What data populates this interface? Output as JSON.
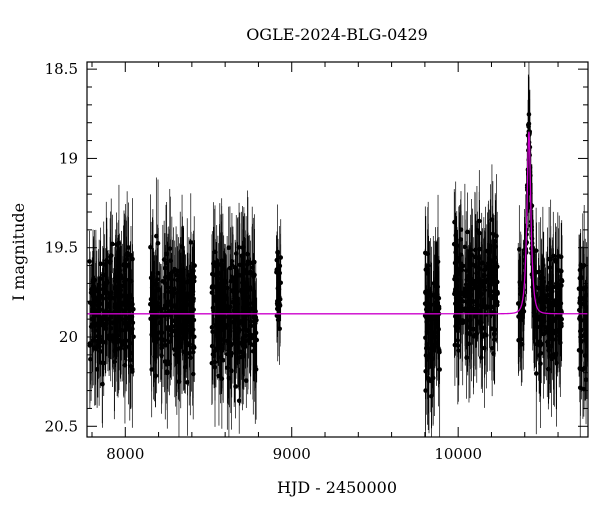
{
  "chart_data": {
    "type": "scatter",
    "title": "OGLE-2024-BLG-0429",
    "xlabel": "HJD - 2450000",
    "ylabel": "I magnitude",
    "xlim": [
      7770,
      10780
    ],
    "ylim": [
      20.56,
      18.46
    ],
    "y_inverted": true,
    "x_ticks": [
      8000,
      9000,
      10000
    ],
    "x_tick_labels": [
      "8000",
      "9000",
      "10000"
    ],
    "y_ticks": [
      18.5,
      19,
      19.5,
      20,
      20.5
    ],
    "y_tick_labels": [
      "18.5",
      "19",
      "19.5",
      "20",
      "20.5"
    ],
    "baseline_mag": 19.87,
    "seasons": [
      {
        "start": 7785,
        "end": 8050,
        "mean_mag": 19.85,
        "scatter": 0.22,
        "error": 0.28
      },
      {
        "start": 8150,
        "end": 8420,
        "mean_mag": 19.85,
        "scatter": 0.22,
        "error": 0.28
      },
      {
        "start": 8520,
        "end": 8790,
        "mean_mag": 19.87,
        "scatter": 0.22,
        "error": 0.28
      },
      {
        "start": 8905,
        "end": 8935,
        "mean_mag": 19.75,
        "scatter": 0.18,
        "error": 0.22
      },
      {
        "start": 9800,
        "end": 9890,
        "mean_mag": 19.9,
        "scatter": 0.25,
        "error": 0.3
      },
      {
        "start": 9975,
        "end": 10240,
        "mean_mag": 19.75,
        "scatter": 0.22,
        "error": 0.28
      },
      {
        "start": 10360,
        "end": 10625,
        "mean_mag": 19.85,
        "scatter": 0.22,
        "error": 0.28
      },
      {
        "start": 10725,
        "end": 10780,
        "mean_mag": 19.9,
        "scatter": 0.22,
        "error": 0.28
      }
    ],
    "peak": {
      "t0": 10425,
      "peak_mag": 18.85
    },
    "series": [
      {
        "color": "#000000",
        "marker": "filled-circle-with-errorbars"
      },
      {
        "color": "#cc00cc",
        "style": "line"
      }
    ],
    "grid": false,
    "legend": "none"
  }
}
